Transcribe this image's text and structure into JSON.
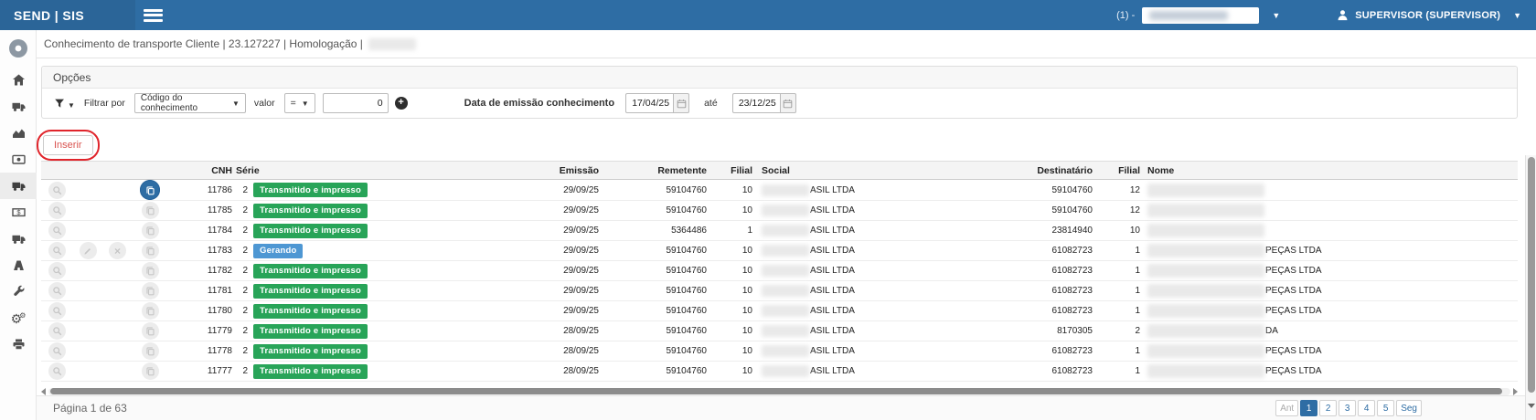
{
  "topbar": {
    "brand": "SEND | SIS",
    "env": "(1) -",
    "user": "SUPERVISOR (SUPERVISOR)"
  },
  "breadcrumb": {
    "text": "Conhecimento de transporte Cliente | 23.127227 | Homologação |"
  },
  "sidebar": {
    "icons": [
      "home-icon",
      "truck-icon",
      "chart-area-icon",
      "money-check-icon",
      "truck-icon",
      "money-icon",
      "truck-icon",
      "road-icon",
      "wrench-icon",
      "cogs-icon",
      "print-icon"
    ],
    "active_index": 4
  },
  "options": {
    "title": "Opções",
    "filter_label": "Filtrar por",
    "filter_field": "Código do conhecimento",
    "value_label": "valor",
    "operator": "=",
    "value": "0",
    "date_label": "Data de emissão conhecimento",
    "date_from": "17/04/25",
    "until_label": "até",
    "date_to": "23/12/25"
  },
  "insert": {
    "label": "Inserir"
  },
  "table": {
    "headers": {
      "cnh": "CNH",
      "serie": "Série",
      "emissao": "Emissão",
      "remetente": "Remetente",
      "filial_rem": "Filial",
      "social": "Social",
      "destinatario": "Destinatário",
      "filial_dest": "Filial",
      "nome": "Nome"
    },
    "status_labels": {
      "transmitted": "Transmitido e impresso",
      "generating": "Gerando"
    },
    "rows": [
      {
        "cnh": "11786",
        "serie": "2",
        "status": "transmitted",
        "emissao": "29/09/25",
        "remetente": "59104760",
        "filial_rem": "10",
        "social": "ASIL LTDA",
        "destinatario": "59104760",
        "filial_dest": "12",
        "nome": "",
        "copy_active": true,
        "extended_actions": false
      },
      {
        "cnh": "11785",
        "serie": "2",
        "status": "transmitted",
        "emissao": "29/09/25",
        "remetente": "59104760",
        "filial_rem": "10",
        "social": "ASIL LTDA",
        "destinatario": "59104760",
        "filial_dest": "12",
        "nome": "",
        "copy_active": false,
        "extended_actions": false
      },
      {
        "cnh": "11784",
        "serie": "2",
        "status": "transmitted",
        "emissao": "29/09/25",
        "remetente": "5364486",
        "filial_rem": "1",
        "social": "ASIL LTDA",
        "destinatario": "23814940",
        "filial_dest": "10",
        "nome": "",
        "copy_active": false,
        "extended_actions": false
      },
      {
        "cnh": "11783",
        "serie": "2",
        "status": "generating",
        "emissao": "29/09/25",
        "remetente": "59104760",
        "filial_rem": "10",
        "social": "ASIL LTDA",
        "destinatario": "61082723",
        "filial_dest": "1",
        "nome": "PEÇAS LTDA",
        "copy_active": false,
        "extended_actions": true
      },
      {
        "cnh": "11782",
        "serie": "2",
        "status": "transmitted",
        "emissao": "29/09/25",
        "remetente": "59104760",
        "filial_rem": "10",
        "social": "ASIL LTDA",
        "destinatario": "61082723",
        "filial_dest": "1",
        "nome": "PEÇAS LTDA",
        "copy_active": false,
        "extended_actions": false
      },
      {
        "cnh": "11781",
        "serie": "2",
        "status": "transmitted",
        "emissao": "29/09/25",
        "remetente": "59104760",
        "filial_rem": "10",
        "social": "ASIL LTDA",
        "destinatario": "61082723",
        "filial_dest": "1",
        "nome": "PEÇAS LTDA",
        "copy_active": false,
        "extended_actions": false
      },
      {
        "cnh": "11780",
        "serie": "2",
        "status": "transmitted",
        "emissao": "29/09/25",
        "remetente": "59104760",
        "filial_rem": "10",
        "social": "ASIL LTDA",
        "destinatario": "61082723",
        "filial_dest": "1",
        "nome": "PEÇAS LTDA",
        "copy_active": false,
        "extended_actions": false
      },
      {
        "cnh": "11779",
        "serie": "2",
        "status": "transmitted",
        "emissao": "28/09/25",
        "remetente": "59104760",
        "filial_rem": "10",
        "social": "ASIL LTDA",
        "destinatario": "8170305",
        "filial_dest": "2",
        "nome": "DA",
        "copy_active": false,
        "extended_actions": false
      },
      {
        "cnh": "11778",
        "serie": "2",
        "status": "transmitted",
        "emissao": "28/09/25",
        "remetente": "59104760",
        "filial_rem": "10",
        "social": "ASIL LTDA",
        "destinatario": "61082723",
        "filial_dest": "1",
        "nome": "PEÇAS LTDA",
        "copy_active": false,
        "extended_actions": false
      },
      {
        "cnh": "11777",
        "serie": "2",
        "status": "transmitted",
        "emissao": "28/09/25",
        "remetente": "59104760",
        "filial_rem": "10",
        "social": "ASIL LTDA",
        "destinatario": "61082723",
        "filial_dest": "1",
        "nome": "PEÇAS LTDA",
        "copy_active": false,
        "extended_actions": false
      }
    ]
  },
  "footer": {
    "page_info": "Página 1 de 63"
  },
  "pagination": {
    "prev": "Ant",
    "pages": [
      "1",
      "2",
      "3",
      "4",
      "5"
    ],
    "active": "1",
    "next": "Seg"
  },
  "colors": {
    "accent": "#2e6da4",
    "success": "#28a458",
    "info": "#4e97d3",
    "danger": "#d9534f",
    "annotation": "#e0242b"
  }
}
